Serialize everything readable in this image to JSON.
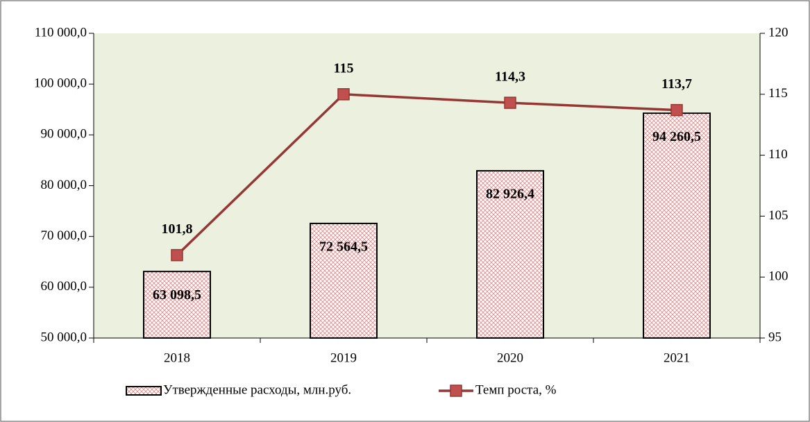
{
  "chart_data": {
    "type": "bar",
    "categories": [
      "2018",
      "2019",
      "2020",
      "2021"
    ],
    "series": [
      {
        "name": "Утвержденные расходы, млн.руб.",
        "type": "bar",
        "axis": "y",
        "color": "#c0504d",
        "values": [
          63098.5,
          72564.5,
          82926.4,
          94260.5
        ],
        "value_labels": [
          "63 098,5",
          "72 564,5",
          "82 926,4",
          "94 260,5"
        ]
      },
      {
        "name": "Темп роста, %",
        "type": "line",
        "axis": "y2",
        "color": "#953735",
        "values": [
          101.8,
          115,
          114.3,
          113.7
        ],
        "value_labels": [
          "101,8",
          "115",
          "114,3",
          "113,7"
        ]
      }
    ],
    "ylim": [
      50000,
      110000
    ],
    "yticks": [
      {
        "value": 50000,
        "label": "50 000,0"
      },
      {
        "value": 60000,
        "label": "60 000,0"
      },
      {
        "value": 70000,
        "label": "70 000,0"
      },
      {
        "value": 80000,
        "label": "80 000,0"
      },
      {
        "value": 90000,
        "label": "90 000,0"
      },
      {
        "value": 100000,
        "label": "100 000,0"
      },
      {
        "value": 110000,
        "label": "110 000,0"
      }
    ],
    "y2lim": [
      95,
      120
    ],
    "y2ticks": [
      95,
      100,
      105,
      110,
      115,
      120
    ],
    "grid": false,
    "legend": "bottom"
  }
}
